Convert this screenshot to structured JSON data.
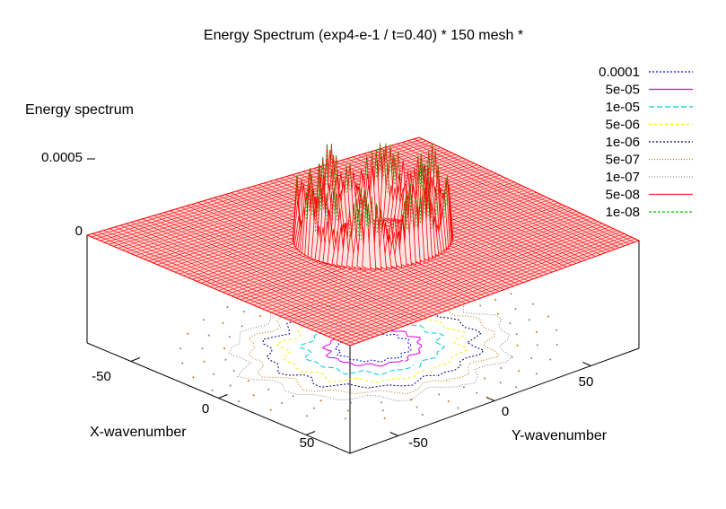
{
  "chart_data": {
    "type": "surface3d",
    "title": "Energy Spectrum (exp4-e-1 / t=0.40) * 150 mesh *",
    "zlabel": "Energy spectrum",
    "xlabel": "X-wavenumber",
    "ylabel": "Y-wavenumber",
    "z_ticks": [
      "0.0005",
      "0"
    ],
    "x_ticks": [
      "-50",
      "0",
      "50"
    ],
    "y_ticks": [
      "-50",
      "0",
      "50"
    ],
    "xlim": [
      -75,
      75
    ],
    "ylim": [
      -75,
      75
    ],
    "zlim": [
      0,
      0.0005
    ],
    "surface": {
      "description": "spectral energy concentrated in a ring of radius about 20-30 wavenumbers around the origin; zero elsewhere",
      "ring_radius": 25,
      "peak_value": 0.0005,
      "color": "#ff0000"
    },
    "contour_legend": [
      {
        "level": "0.0001",
        "color": "#0000ff",
        "dash": "2,2"
      },
      {
        "level": "5e-05",
        "color": "#dd00dd",
        "dash": ""
      },
      {
        "level": "1e-05",
        "color": "#00c8d8",
        "dash": "6,3"
      },
      {
        "level": "5e-06",
        "color": "#f0f000",
        "dash": "3,3"
      },
      {
        "level": "1e-06",
        "color": "#000070",
        "dash": "2,2"
      },
      {
        "level": "5e-07",
        "color": "#d07000",
        "dash": "1,2"
      },
      {
        "level": "1e-07",
        "color": "#808090",
        "dash": "1,2"
      },
      {
        "level": "5e-08",
        "color": "#ff2020",
        "dash": ""
      },
      {
        "level": "1e-08",
        "color": "#00c000",
        "dash": "3,2"
      }
    ]
  }
}
